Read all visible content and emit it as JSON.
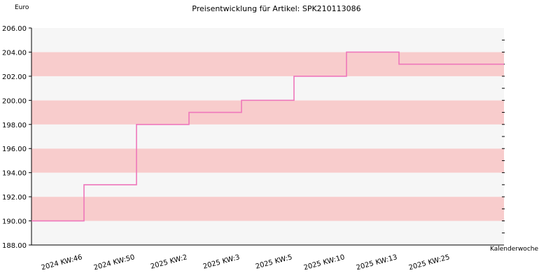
{
  "chart_data": {
    "type": "line",
    "step": true,
    "title": "Preisentwicklung für Artikel: SPK210113086",
    "ylabel": "Euro",
    "xlabel": "Kalenderwoche",
    "categories": [
      "2024 KW:46",
      "2024 KW:50",
      "2025 KW:2",
      "2025 KW:3",
      "2025 KW:5",
      "2025 KW:10",
      "2025 KW:13",
      "2025 KW:25"
    ],
    "series": [
      {
        "values": [
          190.0,
          193.0,
          198.0,
          199.0,
          200.0,
          202.0,
          204.0,
          203.0
        ]
      }
    ],
    "ylim": [
      188.0,
      206.0
    ],
    "yticks": [
      "188.00",
      "190.00",
      "192.00",
      "194.00",
      "196.00",
      "198.00",
      "200.00",
      "202.00",
      "204.00",
      "206.00"
    ],
    "grid": "horizontal alternating bands",
    "colors": {
      "line": "#ee77bb",
      "band_dark": "#f8cccc",
      "band_light": "#f6f6f6",
      "axis": "#000000"
    }
  }
}
